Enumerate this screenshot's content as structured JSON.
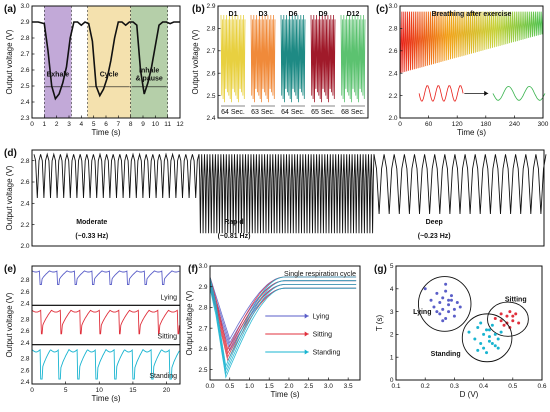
{
  "chart_data": [
    {
      "panel": "(a)",
      "type": "line",
      "xlabel": "Time (s)",
      "ylabel": "Output voltage (V)",
      "xlim": [
        0,
        12
      ],
      "ylim": [
        2.3,
        3.0
      ],
      "xticks": [
        0,
        1,
        2,
        3,
        4,
        5,
        6,
        7,
        8,
        9,
        10,
        11,
        12
      ],
      "yticks": [
        2.3,
        2.4,
        2.5,
        2.6,
        2.7,
        2.8,
        2.9,
        3.0
      ],
      "regions": [
        {
          "label": "Exhale",
          "x0": 1,
          "x1": 3.2,
          "color": "#b79ad1"
        },
        {
          "label": "Cycle",
          "x0": 4.5,
          "x1": 8,
          "color": "#f2dca0"
        },
        {
          "label": "Inhale\n& pause",
          "x0": 8,
          "x1": 11,
          "color": "#a8c79a"
        }
      ],
      "series": [
        {
          "color": "#111111",
          "x": [
            0,
            0.5,
            1.0,
            1.3,
            1.6,
            1.9,
            2.2,
            2.5,
            2.8,
            3.1,
            3.4,
            3.7,
            4.0,
            4.3,
            4.6,
            4.9,
            5.2,
            5.5,
            5.8,
            6.1,
            6.4,
            6.7,
            7.0,
            7.3,
            7.6,
            7.9,
            8.2,
            8.5,
            8.8,
            9.1,
            9.4,
            9.7,
            10.0,
            10.3,
            10.6,
            10.9,
            11.2,
            11.5,
            12
          ],
          "y": [
            2.9,
            2.9,
            2.89,
            2.72,
            2.5,
            2.42,
            2.45,
            2.52,
            2.62,
            2.8,
            2.9,
            2.9,
            2.88,
            2.9,
            2.89,
            2.78,
            2.5,
            2.44,
            2.48,
            2.55,
            2.66,
            2.8,
            2.9,
            2.9,
            2.88,
            2.9,
            2.9,
            2.88,
            2.6,
            2.45,
            2.52,
            2.62,
            2.75,
            2.88,
            2.9,
            2.9,
            2.89,
            2.9,
            2.9
          ]
        }
      ]
    },
    {
      "panel": "(b)",
      "type": "line",
      "ylabel": "Output voltage (V)",
      "ylim": [
        2.4,
        2.9
      ],
      "yticks": [
        2.4,
        2.5,
        2.6,
        2.7,
        2.8,
        2.9
      ],
      "groups": [
        {
          "label": "D1",
          "duration": "64 Sec.",
          "color": "#e8d040"
        },
        {
          "label": "D3",
          "duration": "63 Sec.",
          "color": "#f08a3a"
        },
        {
          "label": "D6",
          "duration": "64 Sec.",
          "color": "#1e8a84"
        },
        {
          "label": "D9",
          "duration": "65 Sec.",
          "color": "#a01a2a"
        },
        {
          "label": "D12",
          "duration": "68 Sec.",
          "color": "#5cc270"
        }
      ],
      "oscillation": {
        "high": 2.86,
        "low": 2.47
      }
    },
    {
      "panel": "(c)",
      "type": "line",
      "title": "Breathing after exercise",
      "xlabel": "Time (s)",
      "xlim": [
        0,
        300
      ],
      "ylim": [
        2.0,
        3.0
      ],
      "xticks": [
        0,
        60,
        120,
        180,
        240,
        300
      ],
      "yticks": [
        2.0,
        2.2,
        2.4,
        2.6,
        2.8,
        3.0
      ],
      "envelope": {
        "high": 2.95,
        "low_start": 2.4,
        "low_end": 2.75
      },
      "gradient": [
        "#e8201a",
        "#f2a21a",
        "#c8d23a",
        "#4cc250"
      ]
    },
    {
      "panel": "(d)",
      "type": "line",
      "ylabel": "Output voltage (V)",
      "ylim": [
        2.0,
        2.9
      ],
      "yticks": [
        2.0,
        2.2,
        2.4,
        2.6,
        2.8
      ],
      "segments": [
        {
          "label": "Moderate",
          "rate": "(~0.33 Hz)",
          "cycles": 25,
          "low": 2.45
        },
        {
          "label": "Rapid",
          "rate": "(~0.81 Hz)",
          "cycles": 64,
          "low": 2.12
        },
        {
          "label": "Deep",
          "rate": "(~0.23 Hz)",
          "cycles": 17,
          "low": 2.3
        }
      ]
    },
    {
      "panel": "(e)",
      "type": "line",
      "xlabel": "Time (s)",
      "ylabel": "Output voltage (V)",
      "xlim": [
        0,
        22
      ],
      "xticks": [
        0,
        5,
        10,
        15,
        20
      ],
      "yticks": [
        2.4,
        2.6,
        2.8
      ],
      "series": [
        {
          "name": "Lying",
          "color": "#5a5ec8",
          "period": 2.6,
          "high": 2.95,
          "low": 2.72
        },
        {
          "name": "Sitting",
          "color": "#e0303c",
          "period": 2.9,
          "high": 2.95,
          "low": 2.55
        },
        {
          "name": "Standing",
          "color": "#18b4d0",
          "period": 2.75,
          "high": 2.95,
          "low": 2.45
        }
      ]
    },
    {
      "panel": "(f)",
      "type": "line",
      "title": "Single respiration cycle",
      "xlabel": "Time (s)",
      "ylabel": "Output voltage (V)",
      "xlim": [
        0,
        3.8
      ],
      "ylim": [
        2.45,
        3.0
      ],
      "xticks": [
        0.0,
        0.5,
        1.0,
        1.5,
        2.0,
        2.5,
        3.0,
        3.5
      ],
      "yticks": [
        2.5,
        2.6,
        2.7,
        2.8,
        2.9,
        3.0
      ],
      "series": [
        {
          "name": "Lying",
          "color": "#5a5ec8",
          "min": 2.62,
          "tmin": 0.5
        },
        {
          "name": "Sitting",
          "color": "#e0303c",
          "min": 2.57,
          "tmin": 0.45
        },
        {
          "name": "Standing",
          "color": "#18b4d0",
          "min": 2.49,
          "tmin": 0.4
        }
      ]
    },
    {
      "panel": "(g)",
      "type": "scatter",
      "xlabel": "D (V)",
      "ylabel": "T (s)",
      "xlim": [
        0.1,
        0.6
      ],
      "ylim": [
        0,
        5
      ],
      "xticks": [
        0.1,
        0.2,
        0.3,
        0.4,
        0.5,
        0.6
      ],
      "yticks": [
        0,
        1,
        2,
        3,
        4,
        5
      ],
      "series": [
        {
          "name": "Lying",
          "color": "#5a5ec8",
          "x": [
            0.2,
            0.22,
            0.23,
            0.24,
            0.25,
            0.25,
            0.26,
            0.26,
            0.27,
            0.27,
            0.28,
            0.28,
            0.29,
            0.3,
            0.3,
            0.31,
            0.32,
            0.24,
            0.27,
            0.29,
            0.26,
            0.28
          ],
          "y": [
            4.0,
            3.5,
            3.2,
            3.8,
            3.4,
            2.9,
            3.6,
            3.1,
            3.9,
            2.7,
            3.3,
            3.0,
            3.5,
            3.1,
            2.8,
            3.4,
            3.2,
            3.0,
            4.2,
            3.7,
            2.6,
            3.5
          ]
        },
        {
          "name": "Sitting",
          "color": "#e0303c",
          "x": [
            0.44,
            0.46,
            0.47,
            0.48,
            0.48,
            0.49,
            0.5,
            0.5,
            0.51,
            0.52,
            0.46,
            0.49
          ],
          "y": [
            2.7,
            2.9,
            2.4,
            2.8,
            2.5,
            3.0,
            2.6,
            2.8,
            2.9,
            2.5,
            2.6,
            2.3
          ]
        },
        {
          "name": "Standing",
          "color": "#18b4d0",
          "x": [
            0.35,
            0.37,
            0.38,
            0.39,
            0.4,
            0.4,
            0.41,
            0.42,
            0.42,
            0.43,
            0.44,
            0.44,
            0.45,
            0.46,
            0.38,
            0.41,
            0.43,
            0.39,
            0.45,
            0.42
          ],
          "y": [
            2.1,
            1.8,
            2.3,
            1.6,
            2.0,
            1.4,
            2.2,
            1.7,
            1.9,
            2.4,
            1.5,
            2.0,
            1.8,
            2.1,
            1.3,
            1.2,
            1.6,
            2.5,
            1.4,
            2.2
          ]
        }
      ],
      "clusters": [
        "Lying",
        "Sitting",
        "Standing"
      ]
    }
  ]
}
